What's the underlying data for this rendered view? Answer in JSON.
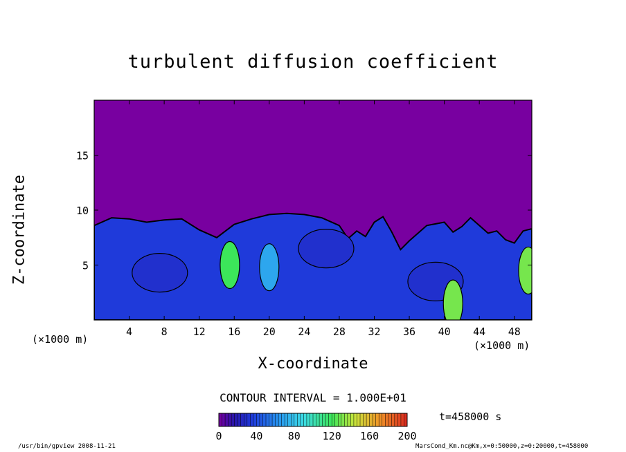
{
  "chart_data": {
    "type": "heatmap",
    "title": "turbulent diffusion coefficient",
    "xlabel": "X-coordinate",
    "ylabel": "Z-coordinate",
    "x_unit": "(×1000 m)",
    "xlim": [
      0,
      50
    ],
    "ylim": [
      0,
      20
    ],
    "x_ticks": [
      4,
      8,
      12,
      16,
      20,
      24,
      28,
      32,
      36,
      40,
      44,
      48
    ],
    "y_ticks": [
      5,
      10,
      15
    ],
    "colorbar": {
      "min": 0,
      "max": 200,
      "ticks": [
        0,
        40,
        80,
        120,
        160,
        200
      ]
    },
    "contour_interval": "CONTOUR INTERVAL = 1.000E+01",
    "time": "t=458000 s",
    "boundary_layer_top": [
      [
        0,
        8.6
      ],
      [
        2,
        9.3
      ],
      [
        4,
        9.2
      ],
      [
        6,
        8.9
      ],
      [
        8,
        9.1
      ],
      [
        10,
        9.2
      ],
      [
        12,
        8.2
      ],
      [
        14,
        7.5
      ],
      [
        16,
        8.7
      ],
      [
        18,
        9.2
      ],
      [
        20,
        9.6
      ],
      [
        22,
        9.7
      ],
      [
        24,
        9.6
      ],
      [
        26,
        9.3
      ],
      [
        28,
        8.6
      ],
      [
        29,
        7.4
      ],
      [
        30,
        8.1
      ],
      [
        31,
        7.6
      ],
      [
        32,
        8.9
      ],
      [
        33,
        9.4
      ],
      [
        34,
        8.0
      ],
      [
        35,
        6.4
      ],
      [
        36,
        7.2
      ],
      [
        38,
        8.6
      ],
      [
        40,
        8.9
      ],
      [
        41,
        8.0
      ],
      [
        42,
        8.5
      ],
      [
        43,
        9.3
      ],
      [
        44,
        8.6
      ],
      [
        45,
        7.9
      ],
      [
        46,
        8.1
      ],
      [
        47,
        7.3
      ],
      [
        48,
        7.0
      ],
      [
        49,
        8.1
      ],
      [
        50,
        8.3
      ]
    ],
    "regions": [
      {
        "x": 7.5,
        "z": 4.3,
        "value": 30
      },
      {
        "x": 20,
        "z": 4.8,
        "value": 70
      },
      {
        "x": 26.5,
        "z": 6.5,
        "value": 30
      },
      {
        "x": 39,
        "z": 3.5,
        "value": 30
      },
      {
        "x": 15.5,
        "z": 5.0,
        "value": 120
      },
      {
        "x": 41,
        "z": 1.5,
        "value": 130
      },
      {
        "x": 49.6,
        "z": 4.5,
        "value": 130
      }
    ],
    "background_value": 0
  },
  "footer": {
    "left": "/usr/bin/gpview  2008-11-21",
    "right": "MarsCond_Km.nc@Km,x=0:50000,z=0:20000,t=458000"
  }
}
